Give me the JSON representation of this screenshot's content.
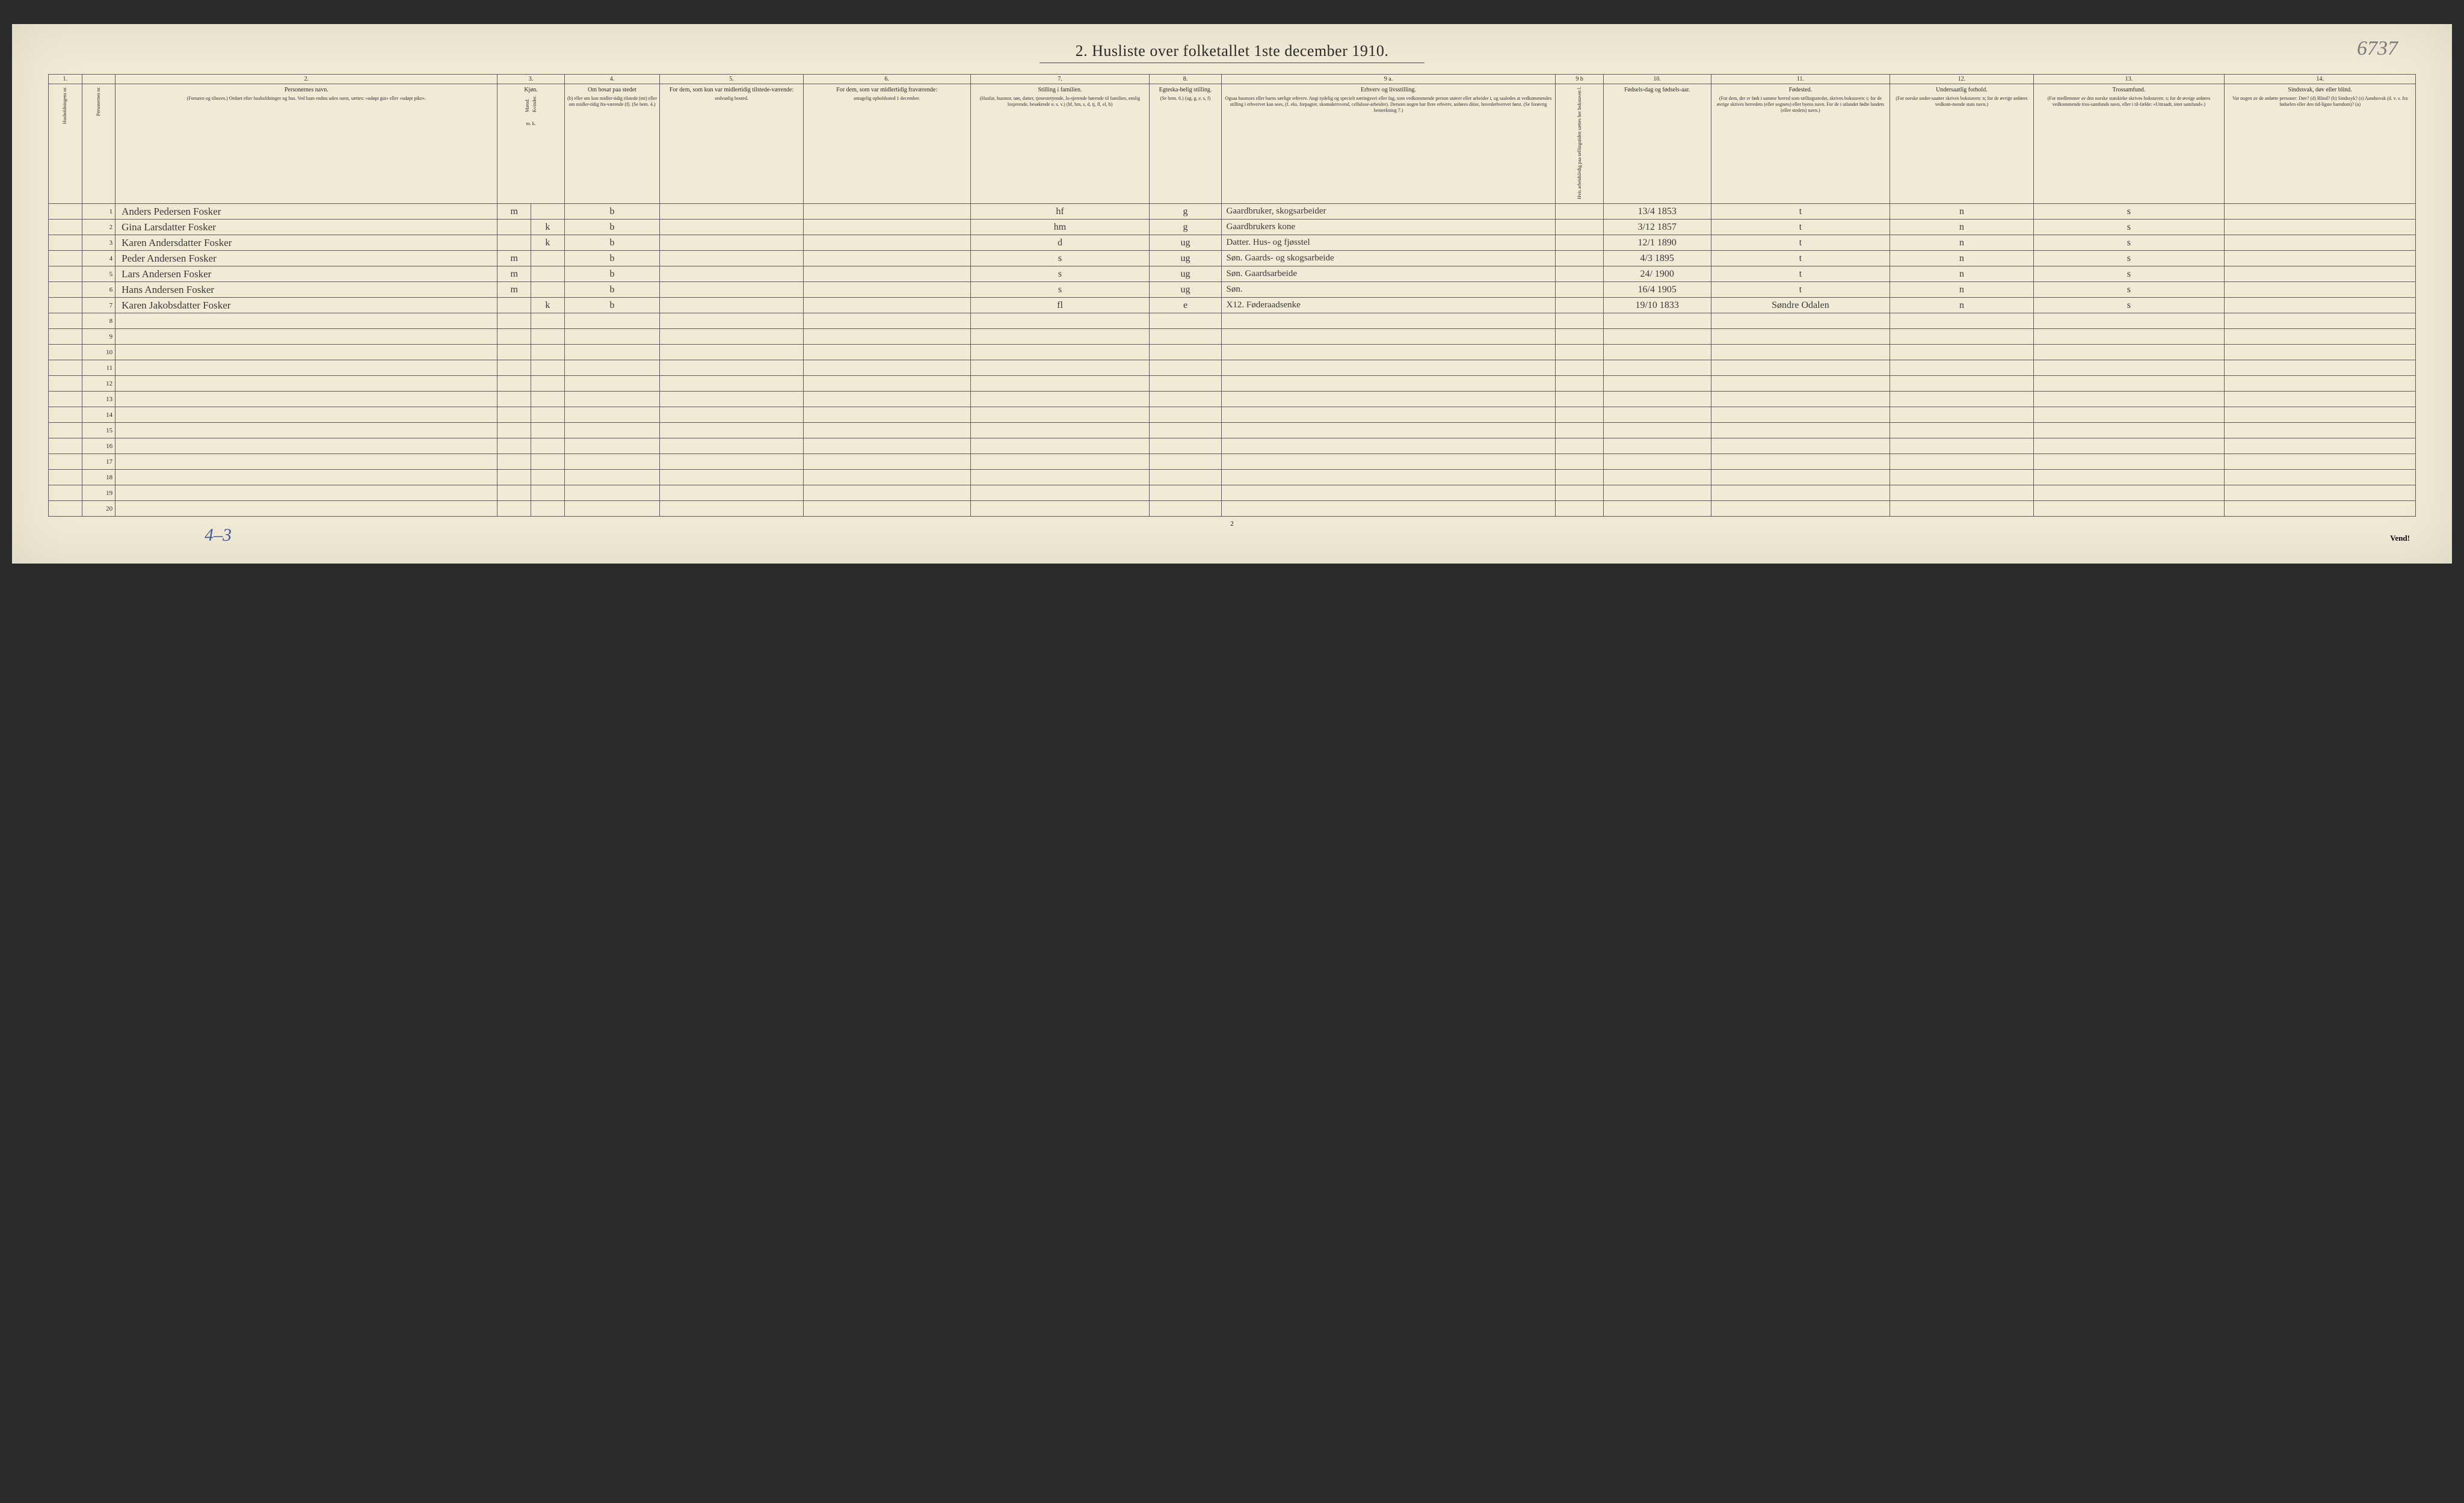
{
  "title": "2.  Husliste over folketallet 1ste december 1910.",
  "annotation_topright": "6737",
  "annotation_bottom": "4–3",
  "page_footer_number": "2",
  "vend_label": "Vend!",
  "column_numbers": [
    "1.",
    "",
    "2.",
    "3.",
    "",
    "4.",
    "5.",
    "6.",
    "7.",
    "8.",
    "9 a.",
    "9 b",
    "10.",
    "11.",
    "12.",
    "13.",
    "14."
  ],
  "headers": {
    "c1": "Husholdningens nr.",
    "c2": "Personernes nr.",
    "name": {
      "main": "Personernes navn.",
      "sub": "(Fornavn og tilnavn.)\nOrdnet efter husholdninger og hus.\nVed barn endnu uden navn, sættes: «udøpt gut» eller «udøpt pike»."
    },
    "kjon": {
      "main": "Kjøn.",
      "m": "Mænd.",
      "k": "Kvinder.",
      "sub": "m.  k."
    },
    "c4": {
      "main": "Om bosat paa stedet",
      "sub": "(b) eller om kun midler-tidig tilstede (mt) eller om midler-tidig fra-værende (f). (Se bem. 4.)"
    },
    "c5": {
      "main": "For dem, som kun var midlertidig tilstede-værende:",
      "sub": "sedvanlig bosted."
    },
    "c6": {
      "main": "For dem, som var midlertidig fraværende:",
      "sub": "antagelig opholdssted 1 december."
    },
    "c7": {
      "main": "Stilling i familien.",
      "sub": "(Husfar, husmor, søn, datter, tjenestetyende, lo-sjerende hørende til familien, enslig losjerende, besøkende o. s. v.)\n(hf, hm, s, d, tj, fl, el, b)"
    },
    "c8": {
      "main": "Egteska-belig stilling.",
      "sub": "(Se bem. 6.)\n(ug, g, e, s, f)"
    },
    "c9a": {
      "main": "Erhverv og livsstilling.",
      "sub": "Ogsaa husmors eller barns særlige erhverv. Angi tydelig og specielt næringsvei eller fag, som vedkommende person utøver eller arbeider i, og saaledes at vedkommendes stilling i erhvervet kan sees, (f. eks. forpagter, skomakersvend, cellulose-arbeider). Dersom nogen har flere erhverv, anføres disse, hovederhvervet først. (Se forøvrig bemerkning 7.)"
    },
    "c9b": "Hvis arbeidsledig paa tællingstiden sættes her bokstaven l.",
    "c10": {
      "main": "Fødsels-dag og fødsels-aar."
    },
    "c11": {
      "main": "Fødested.",
      "sub": "(For dem, der er født i samme herred som tællingsstedet, skrives bokstaven: t; for de øvrige skrives herredets (eller sognets) eller byens navn. For de i utlandet fødte landets (eller stedets) navn.)"
    },
    "c12": {
      "main": "Undersaatlig forhold.",
      "sub": "(For norske under-saatter skrives bokstaven: n; for de øvrige anføres vedkom-mende stats navn.)"
    },
    "c13": {
      "main": "Trossamfund.",
      "sub": "(For medlemmer av den norske statskirke skrives bokstaven: s; for de øvrige anføres vedkommende tros-samfunds navn, eller i til-fælde: «Uttraadt, intet samfund».)"
    },
    "c14": {
      "main": "Sindssvak, døv eller blind.",
      "sub": "Var nogen av de anførte personer:\nDøv? (d)\nBlind? (b)\nSindssyk? (s)\nAandssvak (d. v. s. fra fødselen eller den tid-ligste barndom)? (a)"
    }
  },
  "rows": [
    {
      "n": "1",
      "name": "Anders Pedersen Fosker",
      "m": "m",
      "k": "",
      "c4": "b",
      "c7": "hf",
      "c8": "g",
      "c9a": "Gaardbruker, skogsarbeider",
      "c10": "13/4 1853",
      "c11": "t",
      "c12": "n",
      "c13": "s"
    },
    {
      "n": "2",
      "name": "Gina Larsdatter Fosker",
      "m": "",
      "k": "k",
      "c4": "b",
      "c7": "hm",
      "c8": "g",
      "c9a": "Gaardbrukers kone",
      "c10": "3/12 1857",
      "c11": "t",
      "c12": "n",
      "c13": "s"
    },
    {
      "n": "3",
      "name": "Karen Andersdatter Fosker",
      "m": "",
      "k": "k",
      "c4": "b",
      "c7": "d",
      "c8": "ug",
      "c9a": "Datter. Hus- og fjøsstel",
      "c10": "12/1 1890",
      "c11": "t",
      "c12": "n",
      "c13": "s"
    },
    {
      "n": "4",
      "name": "Peder Andersen Fosker",
      "m": "m",
      "k": "",
      "c4": "b",
      "c7": "s",
      "c8": "ug",
      "c9a": "Søn. Gaards- og skogsarbeide",
      "c10": "4/3 1895",
      "c11": "t",
      "c12": "n",
      "c13": "s"
    },
    {
      "n": "5",
      "name": "Lars Andersen Fosker",
      "m": "m",
      "k": "",
      "c4": "b",
      "c7": "s",
      "c8": "ug",
      "c9a": "Søn. Gaardsarbeide",
      "c10": "24/ 1900",
      "c11": "t",
      "c12": "n",
      "c13": "s"
    },
    {
      "n": "6",
      "name": "Hans Andersen Fosker",
      "m": "m",
      "k": "",
      "c4": "b",
      "c7": "s",
      "c8": "ug",
      "c9a": "Søn.",
      "c10": "16/4 1905",
      "c11": "t",
      "c12": "n",
      "c13": "s"
    },
    {
      "n": "7",
      "name": "Karen Jakobsdatter Fosker",
      "m": "",
      "k": "k",
      "c4": "b",
      "c7": "fl",
      "c8": "e",
      "c9a": "X12. Føderaadsenke",
      "c10": "19/10 1833",
      "c11": "Søndre Odalen",
      "c12": "n",
      "c13": "s"
    }
  ],
  "empty_row_count": 13,
  "colors": {
    "page_bg": "#f0ead6",
    "border": "#5a5a5a",
    "text": "#2a2a2a",
    "handwriting": "#3a3a3a",
    "annotation_blue": "#4a5a9a",
    "annotation_pencil": "#7a7a7a"
  }
}
